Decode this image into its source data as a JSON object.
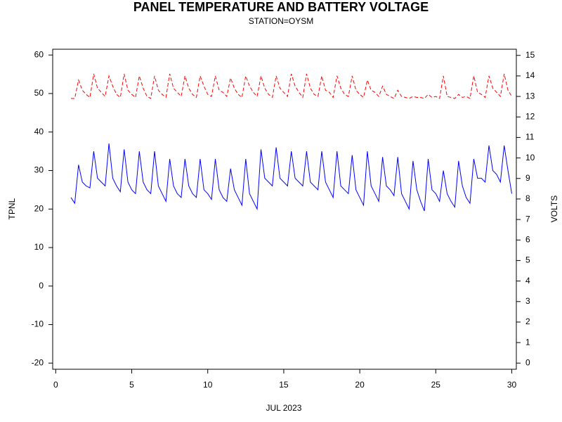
{
  "chart_data": {
    "type": "line",
    "title": "PANEL TEMPERATURE AND BATTERY VOLTAGE",
    "subtitle": "STATION=OYSM",
    "xlabel": "JUL 2023",
    "ylabel": "TPNL",
    "y2label": "VOLTS",
    "x": [
      1,
      1.25,
      1.5,
      1.75,
      2,
      2.25,
      2.5,
      2.75,
      3,
      3.25,
      3.5,
      3.75,
      4,
      4.25,
      4.5,
      4.75,
      5,
      5.25,
      5.5,
      5.75,
      6,
      6.25,
      6.5,
      6.75,
      7,
      7.25,
      7.5,
      7.75,
      8,
      8.25,
      8.5,
      8.75,
      9,
      9.25,
      9.5,
      9.75,
      10,
      10.25,
      10.5,
      10.75,
      11,
      11.25,
      11.5,
      11.75,
      12,
      12.25,
      12.5,
      12.75,
      13,
      13.25,
      13.5,
      13.75,
      14,
      14.25,
      14.5,
      14.75,
      15,
      15.25,
      15.5,
      15.75,
      16,
      16.25,
      16.5,
      16.75,
      17,
      17.25,
      17.5,
      17.75,
      18,
      18.25,
      18.5,
      18.75,
      19,
      19.25,
      19.5,
      19.75,
      20,
      20.25,
      20.5,
      20.75,
      21,
      21.25,
      21.5,
      21.75,
      22,
      22.25,
      22.5,
      22.75,
      23,
      23.25,
      23.5,
      23.75,
      24,
      24.25,
      24.5,
      24.75,
      25,
      25.25,
      25.5,
      25.75,
      26,
      26.25,
      26.5,
      26.75,
      27,
      27.25,
      27.5,
      27.75,
      28,
      28.25,
      28.5,
      28.75,
      29,
      29.25,
      29.5,
      29.75,
      30
    ],
    "series": [
      {
        "color": "#0000ff",
        "line_style": "solid",
        "axis": "y",
        "values": [
          23,
          21.5,
          31.5,
          27,
          26,
          25.5,
          35,
          28,
          27,
          26,
          37,
          28,
          26,
          24.5,
          35.5,
          27,
          25,
          24,
          35,
          27,
          25,
          24,
          35,
          26,
          24,
          22,
          33,
          26,
          24,
          23,
          33,
          26,
          24,
          23,
          33,
          25,
          24,
          22.5,
          33,
          25,
          23,
          22,
          30.5,
          25,
          23,
          21,
          33,
          24,
          22,
          20,
          35.5,
          28,
          27,
          26,
          36,
          28,
          27,
          26,
          35,
          28,
          27,
          26,
          35,
          27,
          26,
          25,
          35,
          27,
          25,
          23,
          35,
          26,
          25,
          24,
          34,
          25,
          23,
          21,
          35,
          26,
          24,
          22,
          33.5,
          26,
          25,
          23.5,
          33.5,
          24,
          22,
          20,
          32.5,
          25,
          22,
          19.5,
          33,
          25,
          24,
          22,
          30,
          24,
          22,
          20.5,
          32.5,
          26,
          23,
          21.5,
          33,
          28,
          28,
          27,
          36.5,
          30,
          29,
          27,
          36.5,
          30,
          24
        ]
      },
      {
        "color": "#ff0000",
        "line_style": "dashed",
        "axis": "y2",
        "values": [
          12.9,
          12.9,
          13.8,
          13.3,
          13.1,
          12.95,
          14.1,
          13.4,
          13.2,
          13.0,
          14.0,
          13.5,
          13.1,
          12.95,
          14.1,
          13.3,
          13.1,
          12.95,
          14.0,
          13.4,
          13.0,
          12.9,
          14.0,
          13.3,
          13.1,
          12.95,
          14.1,
          13.4,
          13.2,
          13.0,
          14.0,
          13.4,
          13.1,
          12.95,
          14.0,
          13.5,
          13.1,
          13.0,
          14.0,
          13.3,
          13.2,
          13.0,
          13.9,
          13.4,
          13.1,
          12.95,
          14.0,
          13.5,
          13.2,
          13.0,
          14.0,
          13.4,
          13.1,
          12.95,
          14.0,
          13.4,
          13.2,
          13.0,
          14.1,
          13.5,
          13.2,
          12.95,
          14.1,
          13.4,
          13.1,
          13.0,
          14.0,
          13.3,
          13.2,
          12.95,
          14.0,
          13.4,
          13.1,
          13.0,
          14.0,
          13.3,
          13.1,
          12.95,
          13.8,
          13.3,
          13.2,
          13.0,
          13.5,
          13.1,
          13.0,
          12.9,
          13.3,
          13.0,
          12.95,
          12.9,
          13.0,
          12.95,
          12.95,
          12.9,
          13.1,
          12.95,
          13.0,
          12.9,
          14.0,
          13.0,
          12.95,
          12.9,
          13.1,
          12.95,
          13.0,
          12.9,
          14.0,
          13.2,
          13.1,
          12.95,
          14.0,
          13.4,
          13.2,
          13.0,
          14.1,
          13.3,
          13.0
        ]
      }
    ],
    "xlim": [
      -0.2,
      30.3
    ],
    "xticks": [
      0,
      5,
      10,
      15,
      20,
      25,
      30
    ],
    "ylim": [
      -21.6,
      61.5
    ],
    "yticks": [
      -20,
      -10,
      0,
      10,
      20,
      30,
      40,
      50,
      60
    ],
    "y2lim": [
      -0.3,
      15.3
    ],
    "y2ticks": [
      0,
      1,
      2,
      3,
      4,
      5,
      6,
      7,
      8,
      9,
      10,
      11,
      12,
      13,
      14,
      15
    ]
  }
}
